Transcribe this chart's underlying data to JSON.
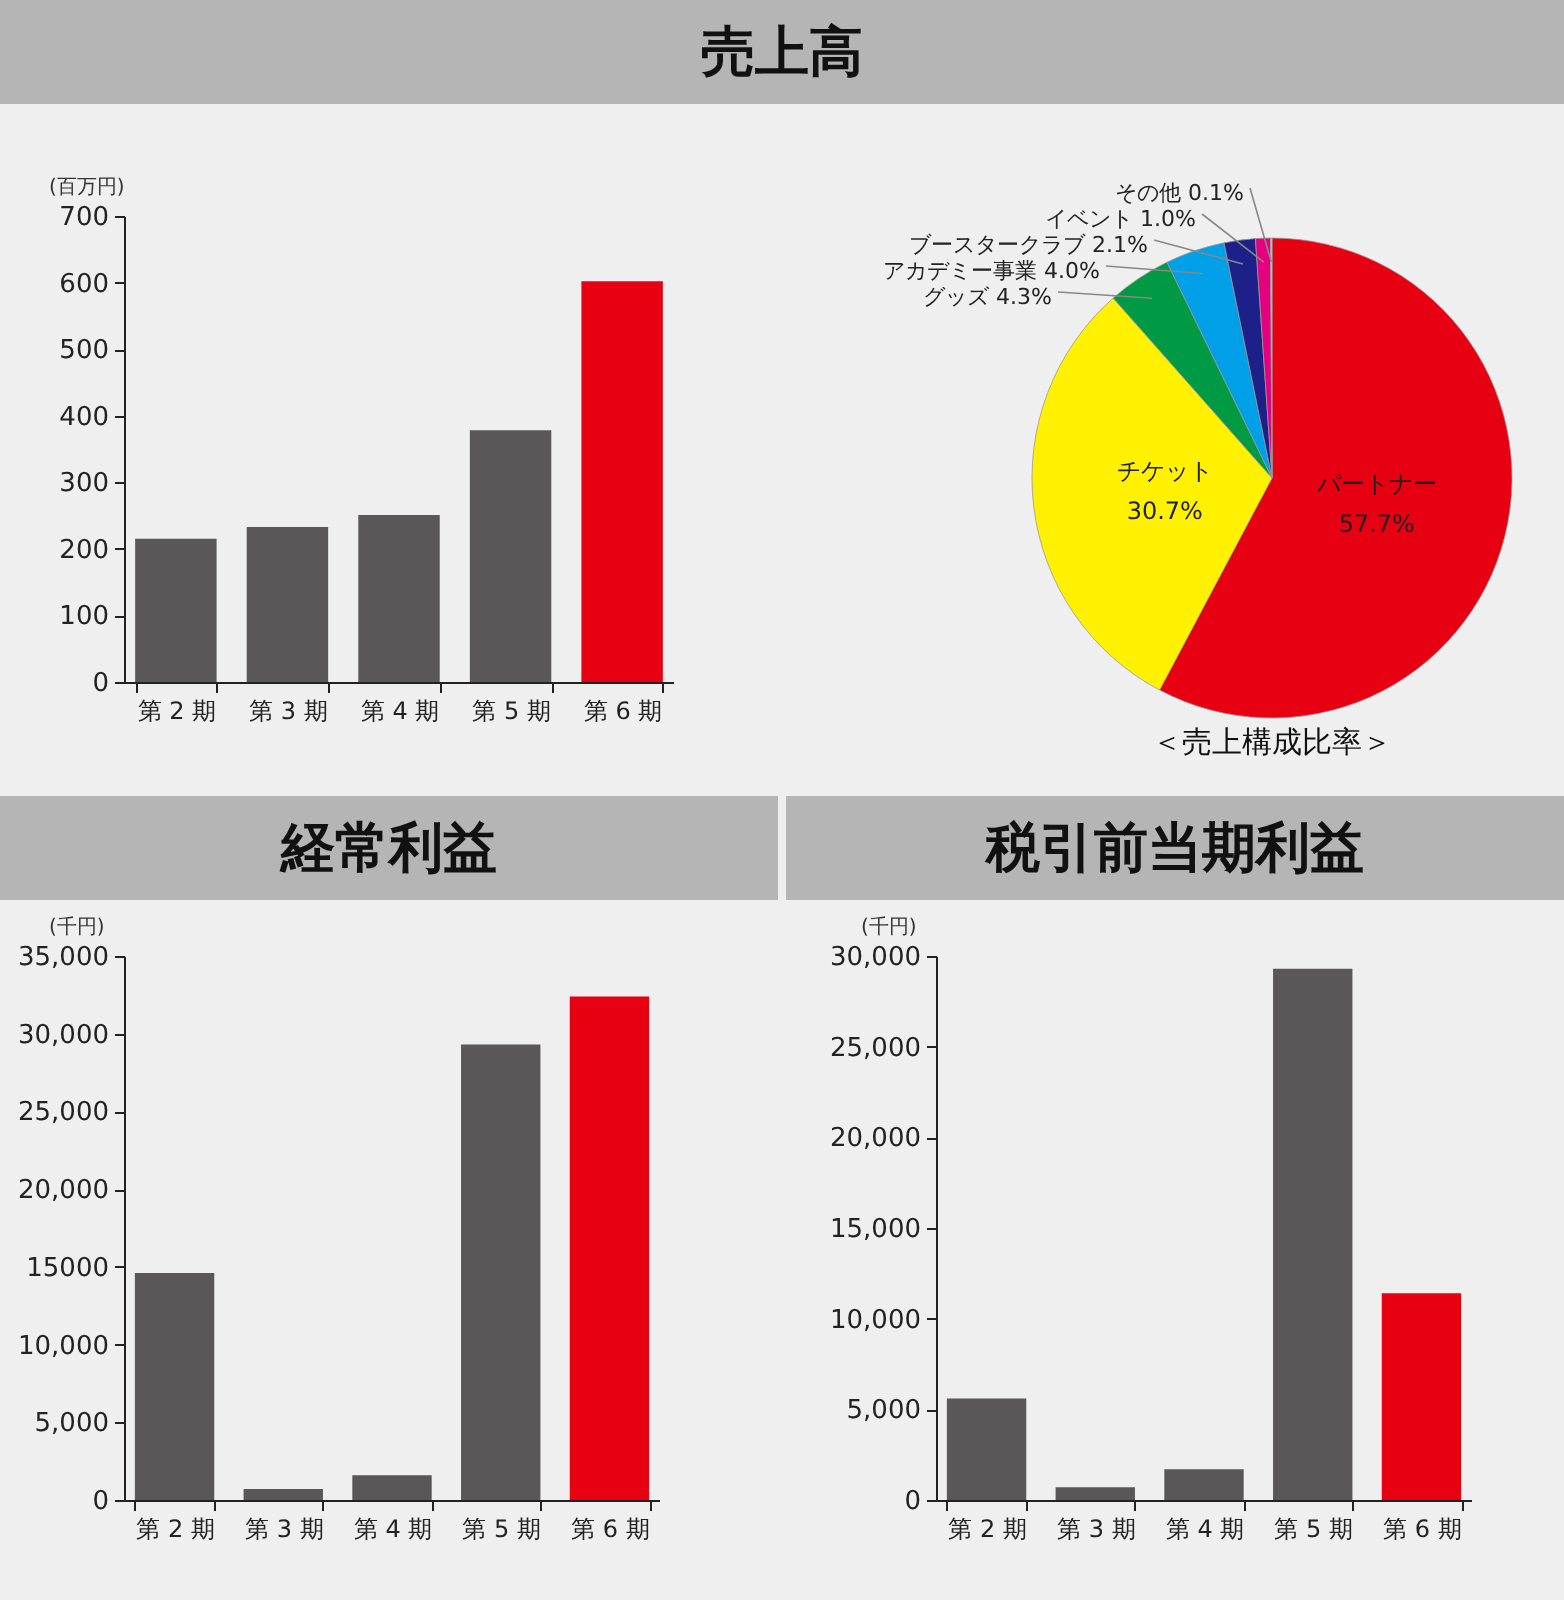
{
  "chart_data": [
    {
      "type": "bar",
      "title": "売上高",
      "ylabel": "(百万円)",
      "categories": [
        "第 2 期",
        "第 3 期",
        "第 4 期",
        "第 5 期",
        "第 6 期"
      ],
      "values": [
        215,
        233,
        251,
        378,
        602
      ],
      "colors": [
        "#595757",
        "#595757",
        "#595757",
        "#595757",
        "#e60012"
      ],
      "ylim": [
        0,
        700
      ],
      "yticks": [
        0,
        100,
        200,
        300,
        400,
        500,
        600,
        700
      ]
    },
    {
      "type": "pie",
      "title": "＜売上構成比率＞",
      "categories": [
        "パートナー",
        "チケット",
        "グッズ",
        "アカデミー事業",
        "ブースタークラブ",
        "イベント",
        "その他"
      ],
      "values": [
        57.7,
        30.7,
        4.3,
        4.0,
        2.1,
        1.0,
        0.1
      ],
      "value_labels": [
        "57.7%",
        "30.7%",
        "4.3%",
        "4.0%",
        "2.1%",
        "1.0%",
        "0.1%"
      ],
      "colors": [
        "#e60012",
        "#fff100",
        "#009944",
        "#00a0e9",
        "#1d2088",
        "#e4007f",
        "#f7c7d9"
      ]
    },
    {
      "type": "bar",
      "title": "経常利益",
      "ylabel": "(千円)",
      "categories": [
        "第 2 期",
        "第 3 期",
        "第 4 期",
        "第 5 期",
        "第 6 期"
      ],
      "values": [
        14600,
        700,
        1600,
        29300,
        32400
      ],
      "colors": [
        "#595757",
        "#595757",
        "#595757",
        "#595757",
        "#e60012"
      ],
      "ylim": [
        0,
        35000
      ],
      "yticks": [
        0,
        {
          "value": 5000,
          "label": "5,000"
        },
        {
          "value": 10000,
          "label": "10,000"
        },
        {
          "value": 15000,
          "label": "15000"
        },
        {
          "value": 20000,
          "label": "20,000"
        },
        {
          "value": 25000,
          "label": "25,000"
        },
        {
          "value": 30000,
          "label": "30,000"
        },
        {
          "value": 35000,
          "label": "35,000"
        }
      ]
    },
    {
      "type": "bar",
      "title": "税引前当期利益",
      "ylabel": "(千円)",
      "categories": [
        "第 2 期",
        "第 3 期",
        "第 4 期",
        "第 5 期",
        "第 6 期"
      ],
      "values": [
        5600,
        700,
        1700,
        29300,
        11400
      ],
      "colors": [
        "#595757",
        "#595757",
        "#595757",
        "#595757",
        "#e60012"
      ],
      "ylim": [
        0,
        30000
      ],
      "yticks": [
        0,
        {
          "value": 5000,
          "label": "5,000"
        },
        {
          "value": 10000,
          "label": "10,000"
        },
        {
          "value": 15000,
          "label": "15,000"
        },
        {
          "value": 20000,
          "label": "20,000"
        },
        {
          "value": 25000,
          "label": "25,000"
        },
        {
          "value": 30000,
          "label": "30,000"
        }
      ]
    }
  ]
}
